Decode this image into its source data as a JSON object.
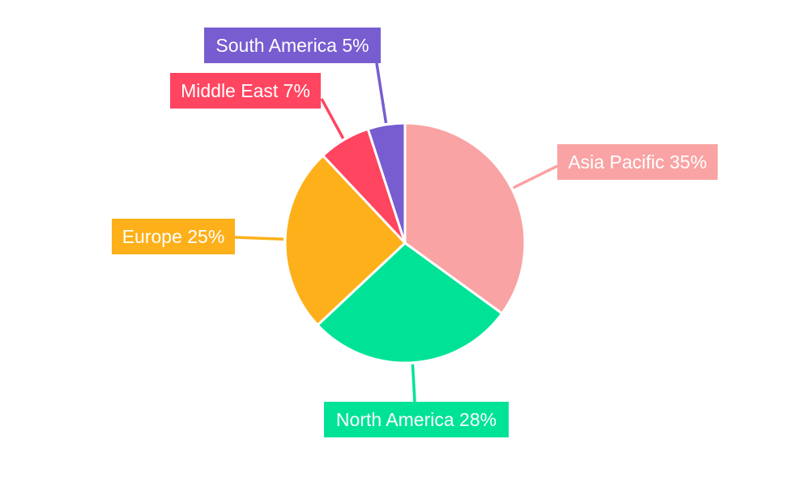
{
  "chart_data": {
    "type": "pie",
    "start_angle": "top, clockwise",
    "slices": [
      {
        "label": "Asia Pacific",
        "value": 35,
        "display": "Asia Pacific 35%",
        "color": "#F9A3A4"
      },
      {
        "label": "North America",
        "value": 28,
        "display": "North America 28%",
        "color": "#00E396"
      },
      {
        "label": "Europe",
        "value": 25,
        "display": "Europe 25%",
        "color": "#FDB01A"
      },
      {
        "label": "Middle East",
        "value": 7,
        "display": "Middle East 7%",
        "color": "#FF4560"
      },
      {
        "label": "South America",
        "value": 5,
        "display": "South America 5%",
        "color": "#775DD0"
      }
    ],
    "legend": "none",
    "labels": "outside boxes with leader lines"
  }
}
